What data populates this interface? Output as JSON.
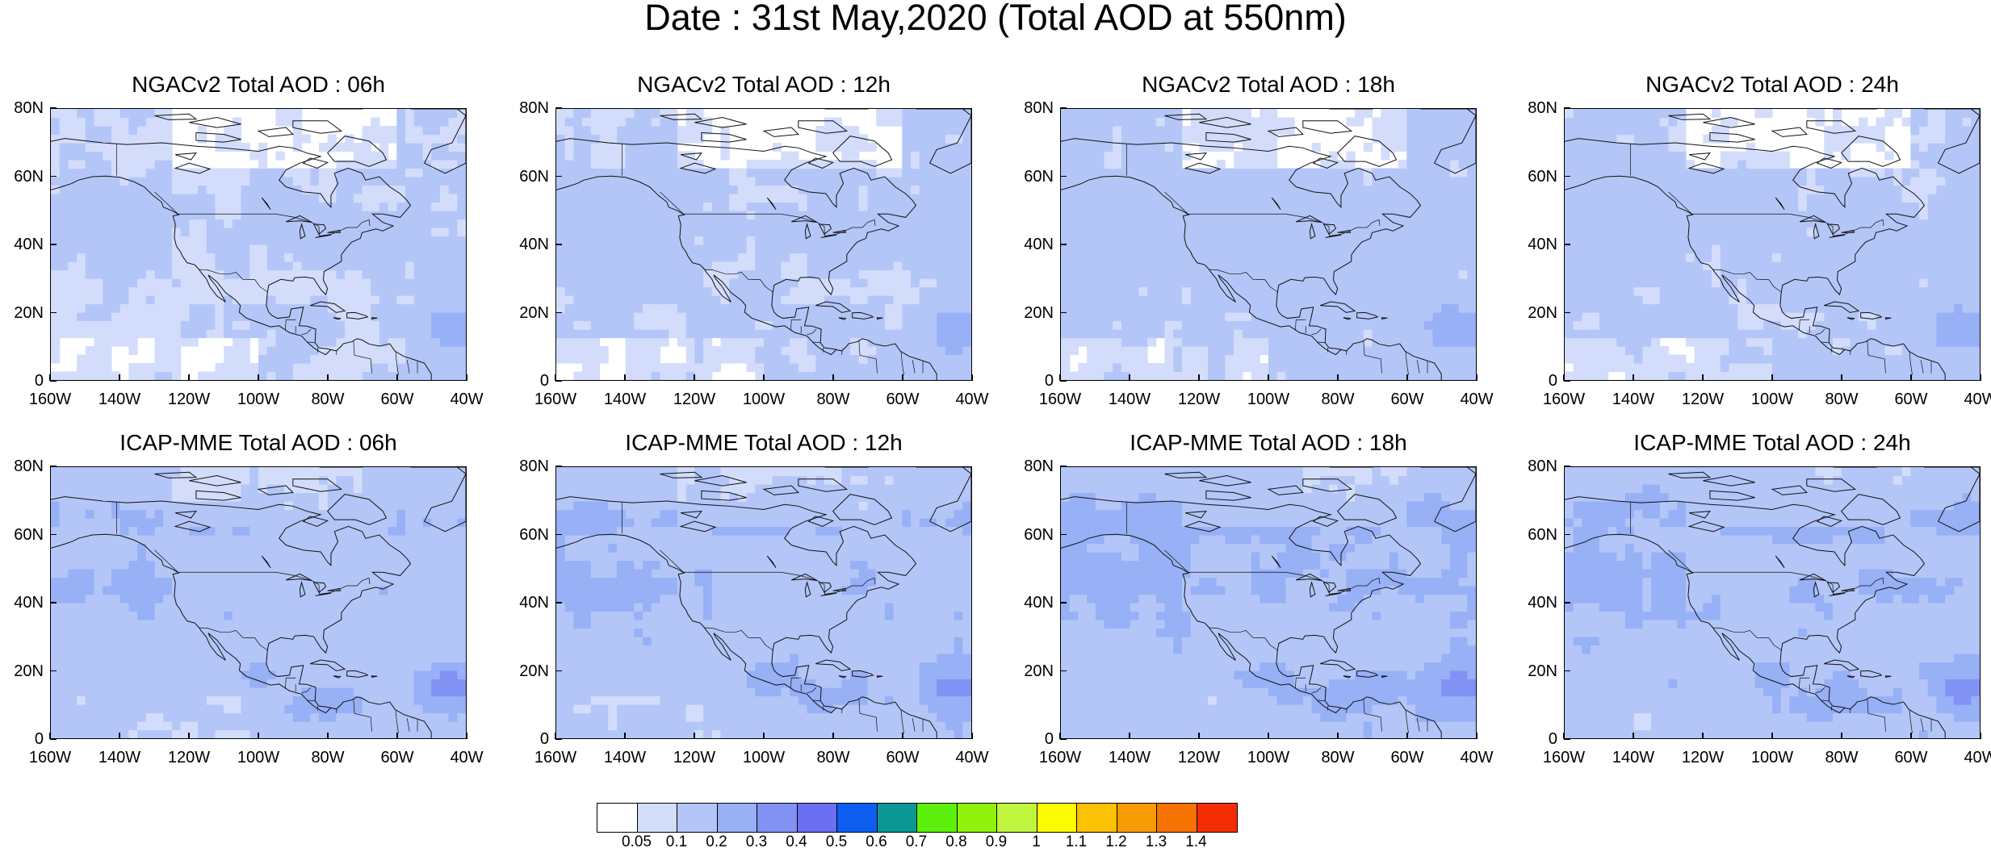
{
  "title": "Date : 31st May,2020 (Total AOD at 550nm)",
  "panels": [
    {
      "title": "NGACv2 Total AOD : 06h",
      "model": "NGACv2",
      "hour": "06h"
    },
    {
      "title": "NGACv2 Total AOD : 12h",
      "model": "NGACv2",
      "hour": "12h"
    },
    {
      "title": "NGACv2 Total AOD : 18h",
      "model": "NGACv2",
      "hour": "18h"
    },
    {
      "title": "NGACv2 Total AOD : 24h",
      "model": "NGACv2",
      "hour": "24h"
    },
    {
      "title": "ICAP-MME Total AOD : 06h",
      "model": "ICAP-MME",
      "hour": "06h"
    },
    {
      "title": "ICAP-MME Total AOD : 12h",
      "model": "ICAP-MME",
      "hour": "12h"
    },
    {
      "title": "ICAP-MME Total AOD : 18h",
      "model": "ICAP-MME",
      "hour": "18h"
    },
    {
      "title": "ICAP-MME Total AOD : 24h",
      "model": "ICAP-MME",
      "hour": "24h"
    }
  ],
  "lat_ticks": [
    "80N",
    "60N",
    "40N",
    "20N",
    "0"
  ],
  "lon_ticks": [
    "160W",
    "140W",
    "120W",
    "100W",
    "80W",
    "60W",
    "40W"
  ],
  "colorbar": {
    "colors": [
      "#ffffff",
      "#d3ddfb",
      "#b4c6f8",
      "#97b0f6",
      "#8192f4",
      "#6a70f1",
      "#0d5ef0",
      "#0b9895",
      "#5cf00c",
      "#8ff20b",
      "#c0f53e",
      "#fbfb02",
      "#fbc103",
      "#f89b02",
      "#f77303",
      "#f52d04"
    ],
    "labels": [
      "0.05",
      "0.1",
      "0.2",
      "0.3",
      "0.4",
      "0.5",
      "0.6",
      "0.7",
      "0.8",
      "0.9",
      "1",
      "1.1",
      "1.2",
      "1.3",
      "1.4"
    ]
  }
}
